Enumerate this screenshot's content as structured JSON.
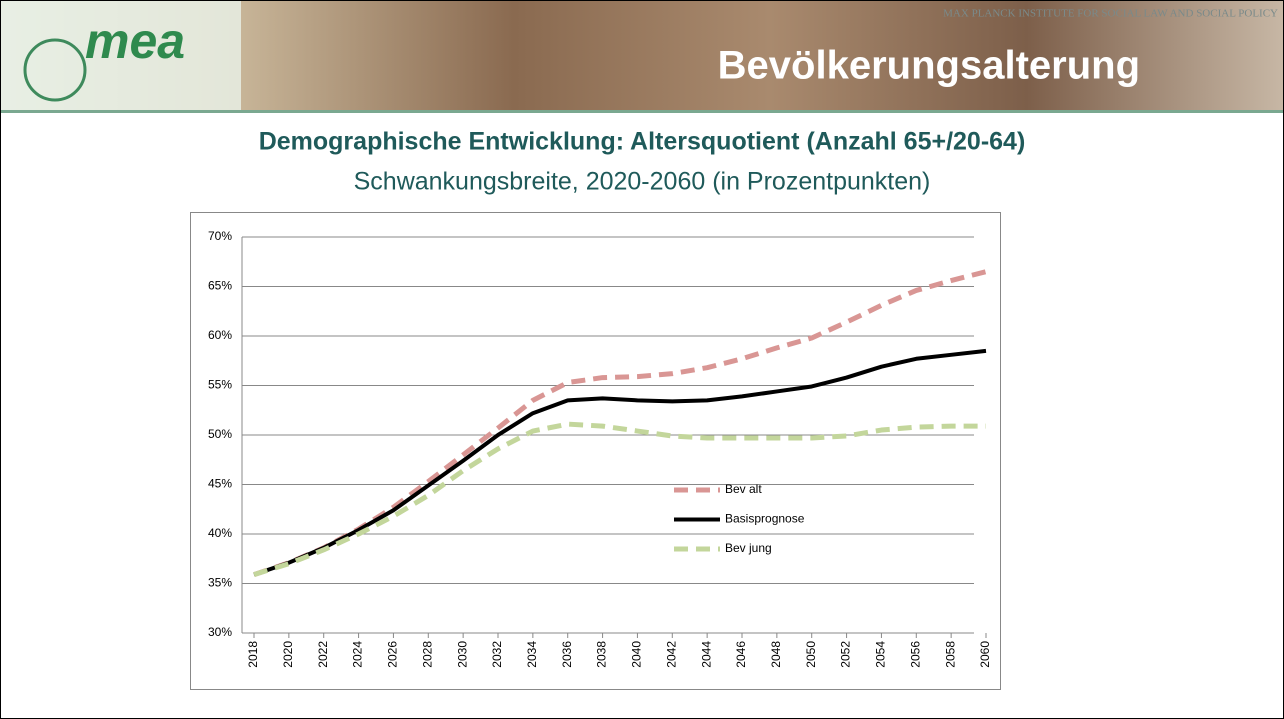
{
  "header": {
    "institute": "MAX PLANCK INSTITUTE FOR SOCIAL LAW AND SOCIAL POLICY",
    "logo": "mea",
    "topic": "Bevölkerungsalterung"
  },
  "chart_data": {
    "type": "line",
    "title": "Demographische Entwicklung: Altersquotient (Anzahl 65+/20-64)",
    "subtitle": "Schwankungsbreite, 2020-2060 (in Prozentpunkten)",
    "x": [
      2018,
      2020,
      2022,
      2024,
      2026,
      2028,
      2030,
      2032,
      2034,
      2036,
      2038,
      2040,
      2042,
      2044,
      2046,
      2048,
      2050,
      2052,
      2054,
      2056,
      2058,
      2060
    ],
    "series": [
      {
        "name": "Bev alt",
        "color": "#d99694",
        "dashed": true,
        "values": [
          35.9,
          37.1,
          38.6,
          40.5,
          42.7,
          45.3,
          48.0,
          50.7,
          53.5,
          55.3,
          55.8,
          55.9,
          56.2,
          56.8,
          57.7,
          58.8,
          59.8,
          61.4,
          63.1,
          64.6,
          65.6,
          66.5
        ]
      },
      {
        "name": "Basisprognose",
        "color": "#000000",
        "dashed": false,
        "values": [
          35.9,
          37.1,
          38.6,
          40.4,
          42.4,
          44.9,
          47.4,
          50.0,
          52.2,
          53.5,
          53.7,
          53.5,
          53.4,
          53.5,
          53.9,
          54.4,
          54.9,
          55.8,
          56.9,
          57.7,
          58.1,
          58.5
        ]
      },
      {
        "name": "Bev jung",
        "color": "#c3d69b",
        "dashed": true,
        "values": [
          35.9,
          37.0,
          38.4,
          40.0,
          41.8,
          43.9,
          46.4,
          48.6,
          50.4,
          51.1,
          50.9,
          50.4,
          49.9,
          49.7,
          49.7,
          49.7,
          49.7,
          49.9,
          50.5,
          50.8,
          50.9,
          50.9
        ]
      }
    ],
    "xlim": [
      2018,
      2060
    ],
    "xticks": [
      2018,
      2020,
      2022,
      2024,
      2026,
      2028,
      2030,
      2032,
      2034,
      2036,
      2038,
      2040,
      2042,
      2044,
      2046,
      2048,
      2050,
      2052,
      2054,
      2056,
      2058,
      2060
    ],
    "ylim": [
      30,
      70
    ],
    "yticks": [
      {
        "value": 30,
        "label": "30%"
      },
      {
        "value": 35,
        "label": "35%"
      },
      {
        "value": 40,
        "label": "40%"
      },
      {
        "value": 45,
        "label": "45%"
      },
      {
        "value": 50,
        "label": "50%"
      },
      {
        "value": 55,
        "label": "55%"
      },
      {
        "value": 60,
        "label": "60%"
      },
      {
        "value": 65,
        "label": "65%"
      },
      {
        "value": 70,
        "label": "70%"
      }
    ],
    "grid": true,
    "legend": "center"
  }
}
